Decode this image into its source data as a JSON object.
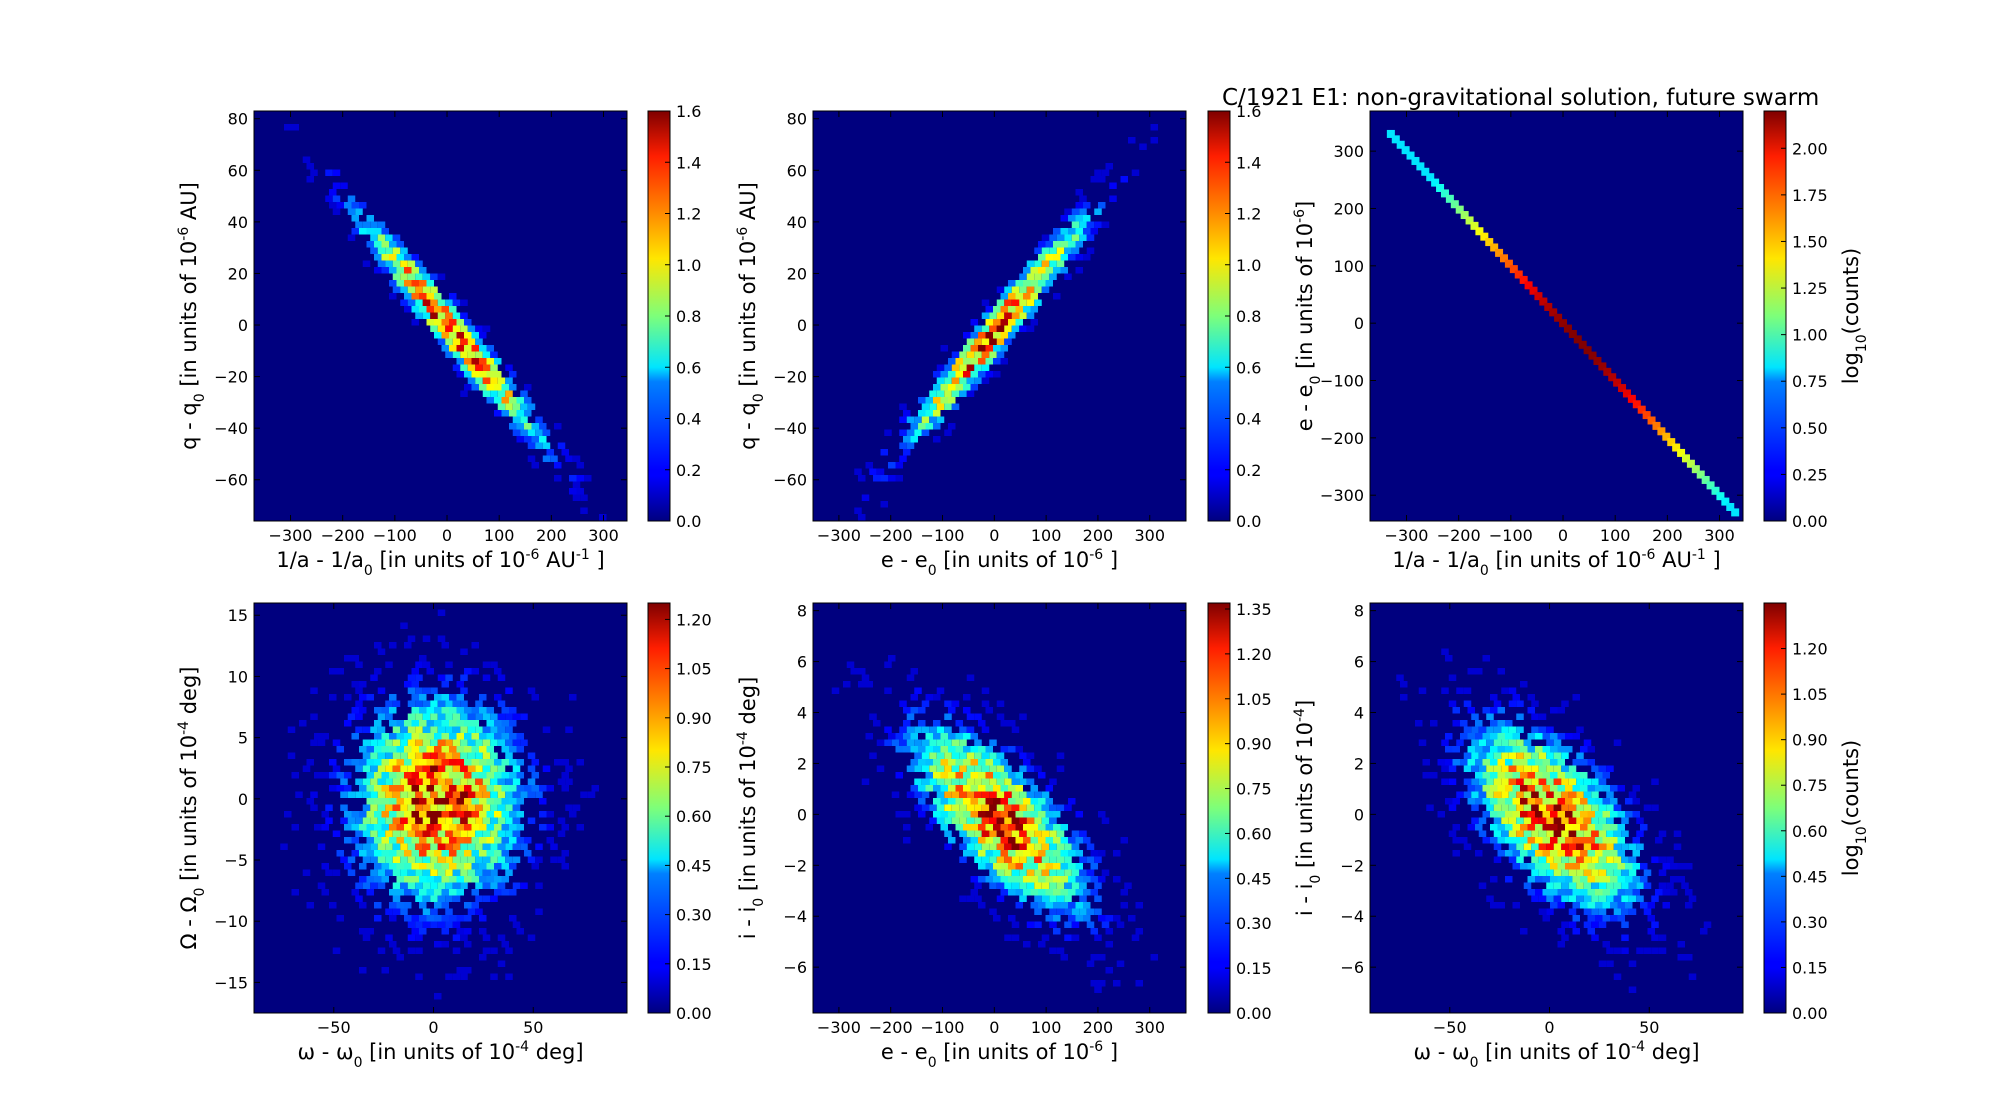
{
  "title": "C/1921 E1:  non-gravitational solution, future swarm",
  "chart_data": [
    {
      "type": "heatmap",
      "id": "p1",
      "xlabel": "1/a - 1/a",
      "xlabel_sub": "0",
      "xlabel_tail": " [in units of 10",
      "xlabel_sup": "-6",
      "xlabel_end": " AU",
      "xlabel_sup2": "-1",
      "xlabel_close": "]",
      "ylabel": "q - q",
      "ylabel_sub": "0",
      "ylabel_tail": " [in units of 10",
      "ylabel_sup": "-6",
      "ylabel_end": " AU]",
      "xlim": [
        -370,
        345
      ],
      "ylim": [
        -76,
        83
      ],
      "xticks": [
        -300,
        -200,
        -100,
        0,
        100,
        200,
        300
      ],
      "yticks": [
        -60,
        -40,
        -20,
        0,
        20,
        40,
        60,
        80
      ],
      "colorbar": {
        "min": 0.0,
        "max": 1.6,
        "ticks": [
          "0.0",
          "0.2",
          "0.4",
          "0.6",
          "0.8",
          "1.0",
          "1.2",
          "1.4",
          "1.6"
        ],
        "label": ""
      },
      "distribution": {
        "cx": 0,
        "cy": 0,
        "sx": 120,
        "sy": 30,
        "corr": -0.975,
        "peak": 1.6
      }
    },
    {
      "type": "heatmap",
      "id": "p2",
      "xlabel": "e - e",
      "xlabel_sub": "0",
      "xlabel_tail": " [in units of 10",
      "xlabel_sup": "-6",
      "xlabel_end": "",
      "xlabel_sup2": "",
      "xlabel_close": "]",
      "ylabel": "q - q",
      "ylabel_sub": "0",
      "ylabel_tail": " [in units of 10",
      "ylabel_sup": "-6",
      "ylabel_end": " AU]",
      "xlim": [
        -350,
        370
      ],
      "ylim": [
        -76,
        83
      ],
      "xticks": [
        -300,
        -200,
        -100,
        0,
        100,
        200,
        300
      ],
      "yticks": [
        -60,
        -40,
        -20,
        0,
        20,
        40,
        60,
        80
      ],
      "colorbar": {
        "min": 0.0,
        "max": 1.6,
        "ticks": [
          "0.0",
          "0.2",
          "0.4",
          "0.6",
          "0.8",
          "1.0",
          "1.2",
          "1.4",
          "1.6"
        ],
        "label": ""
      },
      "distribution": {
        "cx": 0,
        "cy": 0,
        "sx": 120,
        "sy": 30,
        "corr": 0.975,
        "peak": 1.6
      }
    },
    {
      "type": "heatmap",
      "id": "p3",
      "xlabel": "1/a - 1/a",
      "xlabel_sub": "0",
      "xlabel_tail": " [in units of 10",
      "xlabel_sup": "-6",
      "xlabel_end": " AU",
      "xlabel_sup2": "-1",
      "xlabel_close": "]",
      "ylabel": "e - e",
      "ylabel_sub": "0",
      "ylabel_tail": " [in units of 10",
      "ylabel_sup": "-6",
      "ylabel_end": "]",
      "xlim": [
        -370,
        345
      ],
      "ylim": [
        -345,
        370
      ],
      "xticks": [
        -300,
        -200,
        -100,
        0,
        100,
        200,
        300
      ],
      "yticks": [
        -300,
        -200,
        -100,
        0,
        100,
        200,
        300
      ],
      "colorbar": {
        "min": 0.0,
        "max": 2.2,
        "ticks": [
          "0.00",
          "0.25",
          "0.50",
          "0.75",
          "1.00",
          "1.25",
          "1.50",
          "1.75",
          "2.00"
        ],
        "label": "log",
        "label_sub": "10",
        "label_tail": "(counts)"
      },
      "distribution": {
        "line": true,
        "x1": -330,
        "x2": 330,
        "peak": 2.2
      }
    },
    {
      "type": "heatmap",
      "id": "p4",
      "xlabel": "ω - ω",
      "xlabel_sub": "0",
      "xlabel_tail": " [in units of 10",
      "xlabel_sup": "-4",
      "xlabel_end": " deg]",
      "xlabel_sup2": "",
      "xlabel_close": "",
      "ylabel": "Ω - Ω",
      "ylabel_sub": "0",
      "ylabel_tail": " [in units of 10",
      "ylabel_sup": "-4",
      "ylabel_end": " deg]",
      "xlim": [
        -90,
        97
      ],
      "ylim": [
        -17.5,
        16
      ],
      "xticks": [
        -50,
        0,
        50
      ],
      "yticks": [
        -15,
        -10,
        -5,
        0,
        5,
        10,
        15
      ],
      "colorbar": {
        "min": 0.0,
        "max": 1.25,
        "ticks": [
          "0.00",
          "0.15",
          "0.30",
          "0.45",
          "0.60",
          "0.75",
          "0.90",
          "1.05",
          "1.20"
        ],
        "label": ""
      },
      "distribution": {
        "cx": 0,
        "cy": 0,
        "sx": 28,
        "sy": 5.5,
        "corr": 0.0,
        "peak": 1.25
      }
    },
    {
      "type": "heatmap",
      "id": "p5",
      "xlabel": "e - e",
      "xlabel_sub": "0",
      "xlabel_tail": " [in units of 10",
      "xlabel_sup": "-6",
      "xlabel_end": "",
      "xlabel_sup2": "",
      "xlabel_close": "]",
      "ylabel": "i - i",
      "ylabel_sub": "0",
      "ylabel_tail": " [in units of 10",
      "ylabel_sup": "-4",
      "ylabel_end": " deg]",
      "xlim": [
        -350,
        370
      ],
      "ylim": [
        -7.8,
        8.3
      ],
      "xticks": [
        -300,
        -200,
        -100,
        0,
        100,
        200,
        300
      ],
      "yticks": [
        -6,
        -4,
        -2,
        0,
        2,
        4,
        6,
        8
      ],
      "colorbar": {
        "min": 0.0,
        "max": 1.37,
        "ticks": [
          "0.00",
          "0.15",
          "0.30",
          "0.45",
          "0.60",
          "0.75",
          "0.90",
          "1.05",
          "1.20",
          "1.35"
        ],
        "label": ""
      },
      "distribution": {
        "cx": 0,
        "cy": 0,
        "sx": 110,
        "sy": 2.4,
        "corr": -0.72,
        "peak": 1.37
      }
    },
    {
      "type": "heatmap",
      "id": "p6",
      "xlabel": "ω - ω",
      "xlabel_sub": "0",
      "xlabel_tail": " [in units of 10",
      "xlabel_sup": "-4",
      "xlabel_end": " deg]",
      "xlabel_sup2": "",
      "xlabel_close": "",
      "ylabel": "i - i",
      "ylabel_sub": "0",
      "ylabel_tail": " [in units of 10",
      "ylabel_sup": "-4",
      "ylabel_end": "]",
      "xlim": [
        -90,
        97
      ],
      "ylim": [
        -7.8,
        8.3
      ],
      "xticks": [
        -50,
        0,
        50
      ],
      "yticks": [
        -6,
        -4,
        -2,
        0,
        2,
        4,
        6,
        8
      ],
      "colorbar": {
        "min": 0.0,
        "max": 1.35,
        "ticks": [
          "0.00",
          "0.15",
          "0.30",
          "0.45",
          "0.60",
          "0.75",
          "0.90",
          "1.05",
          "1.20"
        ],
        "label": "log",
        "label_sub": "10",
        "label_tail": "(counts)"
      },
      "distribution": {
        "cx": 0,
        "cy": 0,
        "sx": 28,
        "sy": 2.4,
        "corr": -0.6,
        "peak": 1.35
      }
    }
  ]
}
